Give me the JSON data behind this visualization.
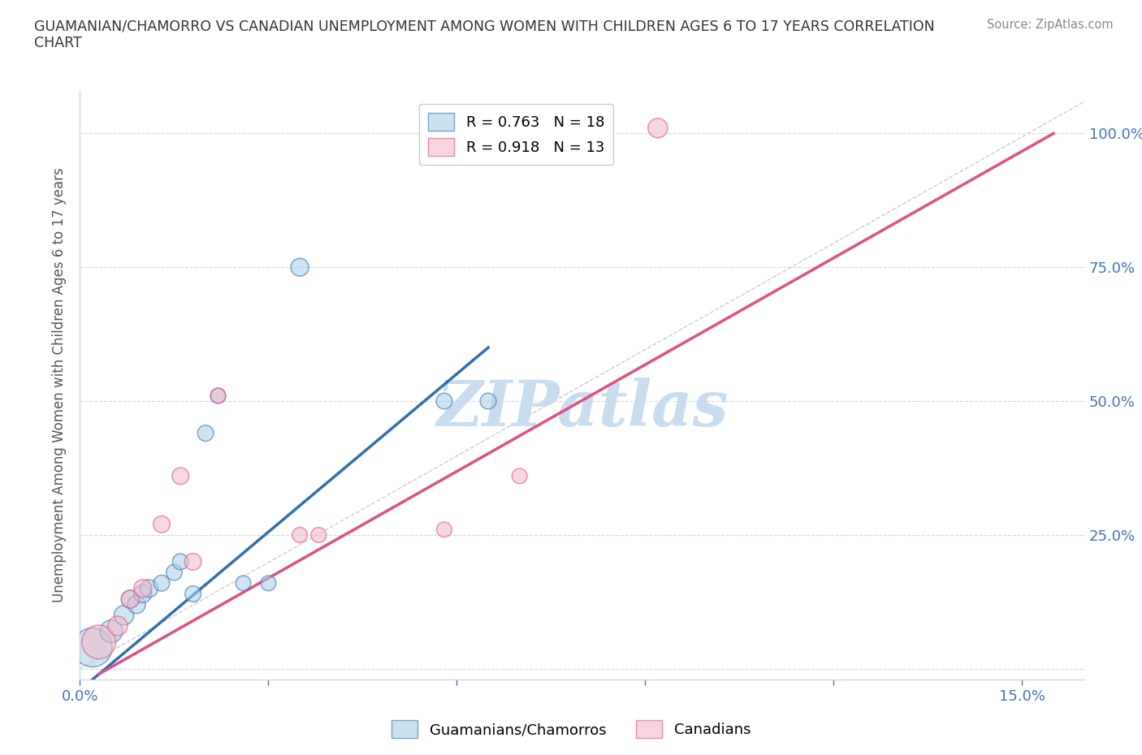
{
  "title": "GUAMANIAN/CHAMORRO VS CANADIAN UNEMPLOYMENT AMONG WOMEN WITH CHILDREN AGES 6 TO 17 YEARS CORRELATION\nCHART",
  "source_text": "Source: ZipAtlas.com",
  "ylabel": "Unemployment Among Women with Children Ages 6 to 17 years",
  "xlabel": "",
  "x_ticks": [
    0.0,
    0.03,
    0.06,
    0.09,
    0.12,
    0.15
  ],
  "x_tick_labels": [
    "0.0%",
    "",
    "",
    "",
    "",
    "15.0%"
  ],
  "y_ticks": [
    0.0,
    0.25,
    0.5,
    0.75,
    1.0
  ],
  "y_tick_labels": [
    "",
    "25.0%",
    "50.0%",
    "75.0%",
    "100.0%"
  ],
  "xlim": [
    0.0,
    0.16
  ],
  "ylim": [
    -0.02,
    1.08
  ],
  "blue_color": "#a8d0e8",
  "pink_color": "#f4b8c8",
  "blue_line_color": "#3070b0",
  "pink_line_color": "#e05080",
  "legend_R_blue": "R = 0.763",
  "legend_N_blue": "N = 18",
  "legend_R_pink": "R = 0.918",
  "legend_N_pink": "N = 13",
  "legend_label_blue": "Guamanians/Chamorros",
  "legend_label_pink": "Canadians",
  "watermark": "ZIPatlas",
  "watermark_color": "#c8ddf0",
  "blue_scatter_x": [
    0.002,
    0.005,
    0.007,
    0.008,
    0.009,
    0.01,
    0.011,
    0.013,
    0.015,
    0.016,
    0.018,
    0.02,
    0.022,
    0.026,
    0.03,
    0.035,
    0.058,
    0.065
  ],
  "blue_scatter_y": [
    0.04,
    0.07,
    0.1,
    0.13,
    0.12,
    0.14,
    0.15,
    0.16,
    0.18,
    0.2,
    0.14,
    0.44,
    0.51,
    0.16,
    0.16,
    0.75,
    0.5,
    0.5
  ],
  "blue_scatter_size": [
    1200,
    400,
    300,
    250,
    250,
    250,
    250,
    200,
    200,
    200,
    200,
    200,
    180,
    180,
    180,
    250,
    200,
    200
  ],
  "pink_scatter_x": [
    0.003,
    0.006,
    0.008,
    0.01,
    0.013,
    0.016,
    0.018,
    0.022,
    0.035,
    0.038,
    0.058,
    0.07,
    0.092
  ],
  "pink_scatter_y": [
    0.05,
    0.08,
    0.13,
    0.15,
    0.27,
    0.36,
    0.2,
    0.51,
    0.25,
    0.25,
    0.26,
    0.36,
    1.01
  ],
  "pink_scatter_size": [
    900,
    300,
    250,
    250,
    220,
    220,
    220,
    180,
    180,
    180,
    180,
    180,
    300
  ],
  "blue_line_x": [
    0.002,
    0.065
  ],
  "blue_line_y": [
    -0.02,
    0.6
  ],
  "pink_line_x": [
    0.003,
    0.155
  ],
  "pink_line_y": [
    -0.01,
    1.0
  ],
  "diag_line_x": [
    0.0,
    0.16
  ],
  "diag_line_y": [
    0.0,
    1.06
  ],
  "background_color": "#ffffff",
  "grid_color": "#d0d8e8",
  "tick_color": "#4472c4",
  "axis_color": "#d0d8e8"
}
